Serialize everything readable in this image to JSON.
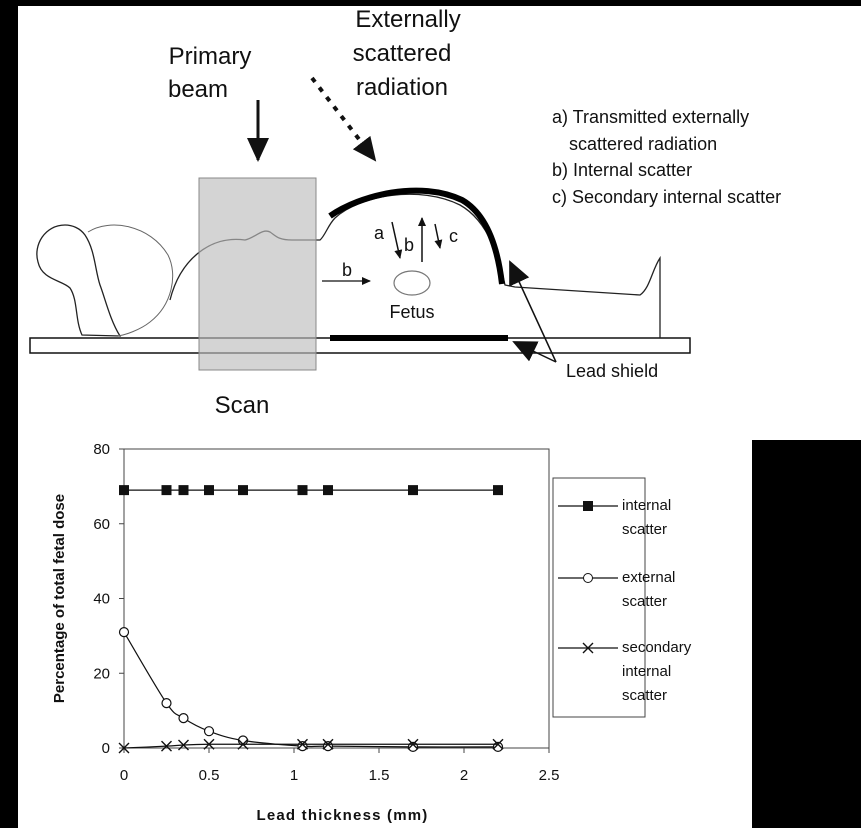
{
  "diagram": {
    "primary_beam": [
      "Primary",
      "beam"
    ],
    "external_radiation": [
      "Externally",
      "scattered",
      "radiation"
    ],
    "key": [
      "a) Transmitted externally",
      "scattered radiation",
      "b) Internal scatter",
      "c) Secondary internal scatter"
    ],
    "arrow_labels": [
      "a",
      "b",
      "c",
      "b"
    ],
    "fetus": "Fetus",
    "lead_shield": "Lead shield",
    "scan": "Scan"
  },
  "chart_data": {
    "type": "line",
    "x_label": "Lead thickness (mm)",
    "y_label": "Percentage of total fetal dose",
    "x": [
      0,
      0.25,
      0.35,
      0.5,
      0.7,
      1.05,
      1.2,
      1.7,
      2.2
    ],
    "series": [
      {
        "name": "internal scatter",
        "color": "#111111",
        "marker": "square",
        "values": [
          69,
          69,
          69,
          69,
          69,
          69,
          69,
          69,
          69
        ]
      },
      {
        "name": "external scatter",
        "color": "#111111",
        "marker": "circle",
        "values": [
          31,
          12,
          8,
          4.5,
          2,
          0.5,
          0.5,
          0.3,
          0.3
        ]
      },
      {
        "name": "secondary internal scatter",
        "color": "#111111",
        "marker": "cross",
        "values": [
          0,
          0.5,
          0.8,
          1,
          1,
          1,
          1,
          1,
          1
        ]
      }
    ],
    "xlim": [
      0,
      2.5
    ],
    "xticks": [
      0,
      0.5,
      1,
      1.5,
      2,
      2.5
    ],
    "ylim": [
      0,
      80
    ],
    "yticks": [
      0,
      20,
      40,
      60,
      80
    ],
    "grid": false,
    "legend": "right"
  }
}
